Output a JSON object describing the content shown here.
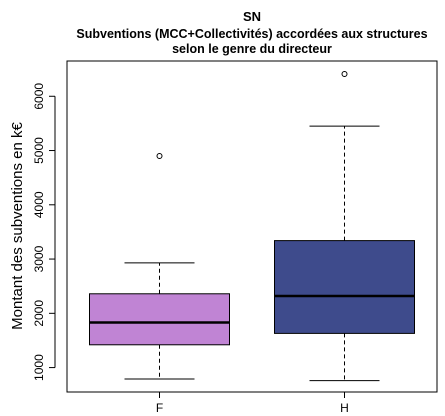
{
  "chart_data": {
    "type": "boxplot",
    "title": "SN",
    "subtitle_lines": [
      "Subventions (MCC+Collectivités) accordées aux structures",
      "selon le genre du directeur"
    ],
    "xlabel": "",
    "ylabel": "Montant des subventions en k€",
    "ylim": [
      550,
      6650
    ],
    "yticks": [
      1000,
      2000,
      3000,
      4000,
      5000,
      6000
    ],
    "grid": false,
    "categories": [
      "F",
      "H"
    ],
    "boxes": [
      {
        "category": "F",
        "color": "#c084d4",
        "whisker_low": 790,
        "q1": 1420,
        "median": 1830,
        "q3": 2360,
        "whisker_high": 2930,
        "outliers": [
          4900
        ]
      },
      {
        "category": "H",
        "color": "#3e4b8c",
        "whisker_low": 760,
        "q1": 1630,
        "median": 2320,
        "q3": 3340,
        "whisker_high": 5450,
        "outliers": [
          6410
        ]
      }
    ]
  }
}
